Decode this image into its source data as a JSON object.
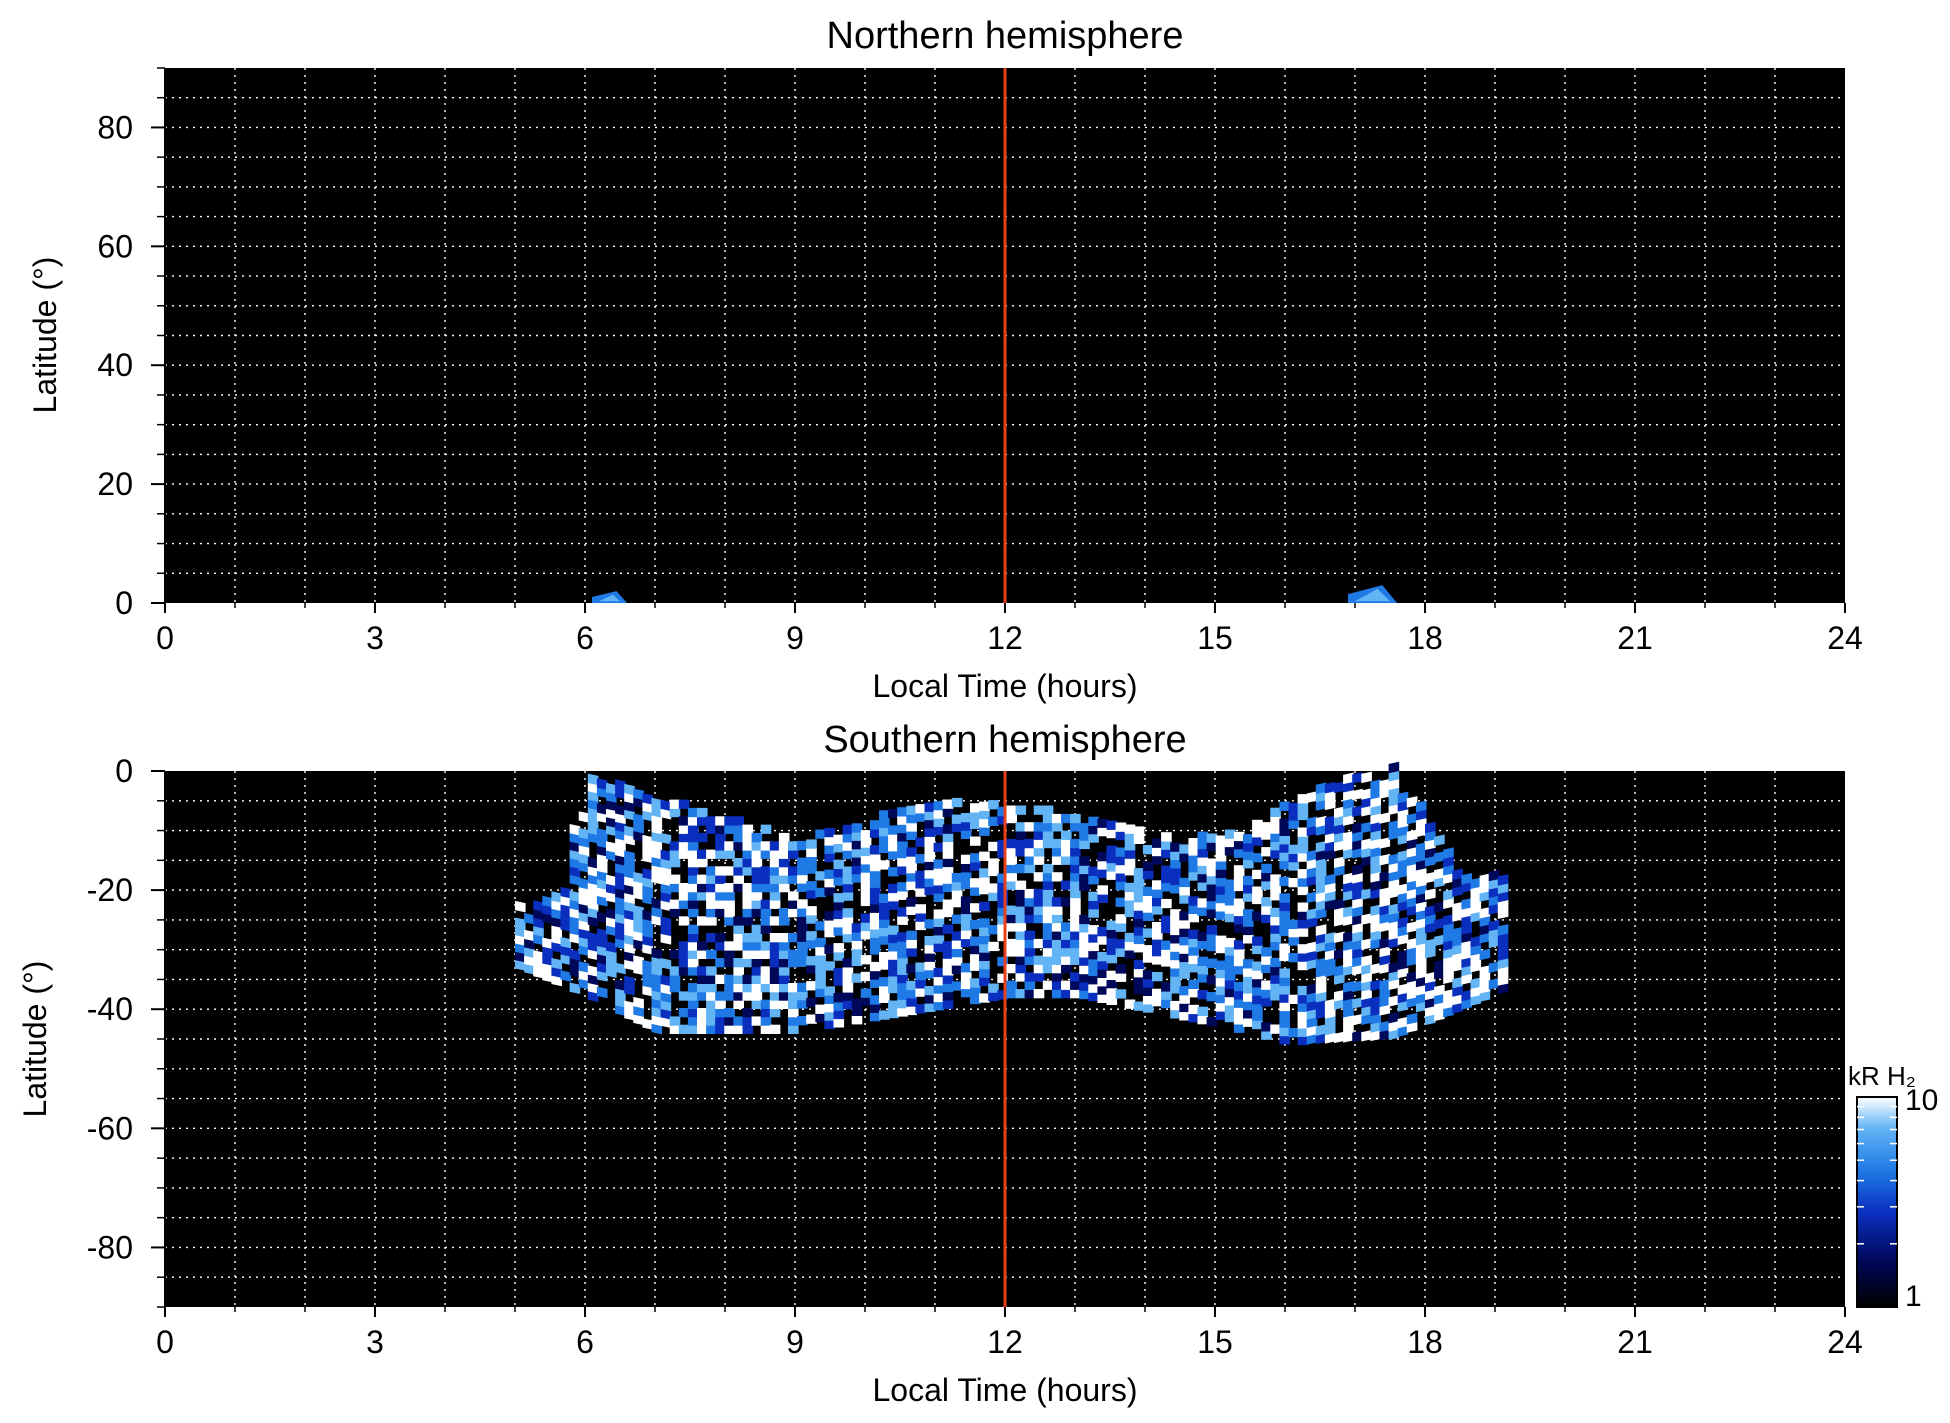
{
  "chart_data": [
    {
      "type": "heatmap",
      "title": "Northern hemisphere",
      "xlabel": "Local Time (hours)",
      "ylabel": "Latitude (°)",
      "xlim": [
        0,
        24
      ],
      "ylim": [
        0,
        90
      ],
      "xticks": [
        "0",
        "3",
        "6",
        "9",
        "12",
        "15",
        "18",
        "21",
        "24"
      ],
      "yticks": [
        "0",
        "20",
        "40",
        "60",
        "80"
      ],
      "grid": true,
      "background": "#000000",
      "reference_line": {
        "x": 12,
        "color": "#e8401c"
      },
      "emission_patches": [
        {
          "lt_range": [
            6.1,
            6.6
          ],
          "lat_range": [
            0,
            2
          ],
          "level": "medium"
        },
        {
          "lt_range": [
            16.9,
            17.6
          ],
          "lat_range": [
            0,
            3
          ],
          "level": "medium"
        }
      ]
    },
    {
      "type": "heatmap",
      "title": "Southern hemisphere",
      "xlabel": "Local Time (hours)",
      "ylabel": "Latitude (°)",
      "xlim": [
        0,
        24
      ],
      "ylim": [
        -90,
        0
      ],
      "xticks": [
        "0",
        "3",
        "6",
        "9",
        "12",
        "15",
        "18",
        "21",
        "24"
      ],
      "yticks": [
        "0",
        "-20",
        "-40",
        "-60",
        "-80"
      ],
      "grid": true,
      "background": "#000000",
      "reference_line": {
        "x": 12,
        "color": "#e8401c"
      },
      "emission_region": {
        "lt_range": [
          5.0,
          19.1
        ],
        "upper_boundary_lat": [
          [
            5.5,
            -22
          ],
          [
            6.0,
            -1
          ],
          [
            7.0,
            -5
          ],
          [
            9.0,
            -12
          ],
          [
            11.0,
            -5
          ],
          [
            12.0,
            -6
          ],
          [
            13.0,
            -8
          ],
          [
            15.0,
            -12
          ],
          [
            16.5,
            -3
          ],
          [
            17.5,
            0
          ],
          [
            18.5,
            -18
          ]
        ],
        "lower_boundary_lat": [
          [
            5.0,
            -33
          ],
          [
            6.0,
            -38
          ],
          [
            7.0,
            -44
          ],
          [
            9.0,
            -44
          ],
          [
            11.0,
            -40
          ],
          [
            12.0,
            -38
          ],
          [
            13.0,
            -38
          ],
          [
            15.0,
            -43
          ],
          [
            16.0,
            -46
          ],
          [
            17.5,
            -45
          ],
          [
            19.1,
            -37
          ]
        ]
      },
      "colorbar": {
        "label": "kR H₂",
        "scale": "log",
        "min": 1,
        "max": 10,
        "min_label": "1",
        "max_label": "10",
        "colors": [
          "#000000",
          "#00085a",
          "#0a2fbf",
          "#1f7ae6",
          "#63b4f5",
          "#ffffff"
        ]
      }
    }
  ]
}
